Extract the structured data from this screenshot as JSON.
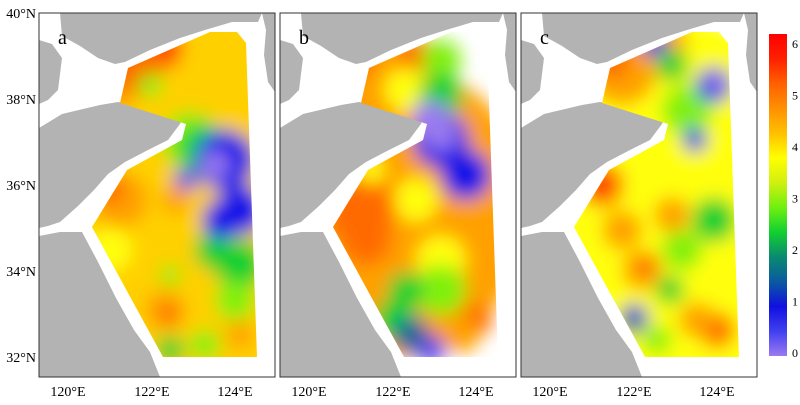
{
  "panels": [
    {
      "label": "a"
    },
    {
      "label": "b"
    },
    {
      "label": "c"
    }
  ],
  "y_ticks": [
    "40°N",
    "38°N",
    "36°N",
    "34°N",
    "32°N"
  ],
  "x_ticks": [
    "120°E",
    "122°E",
    "124°E"
  ],
  "colorbar": {
    "ticks": [
      "6",
      "5",
      "4",
      "3",
      "2",
      "1",
      "0"
    ],
    "range": [
      0,
      6
    ],
    "colors": [
      "#9a7af0",
      "#4040f0",
      "#1010e0",
      "#0a5aa0",
      "#0a8a70",
      "#10d030",
      "#70f010",
      "#d0f010",
      "#ffff00",
      "#ffc000",
      "#ff9000",
      "#ff6000",
      "#ff2000",
      "#ff0000"
    ]
  },
  "land_color": "#b3b3b3"
}
